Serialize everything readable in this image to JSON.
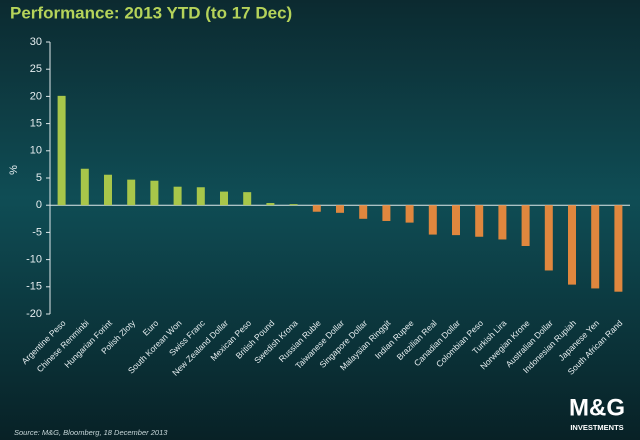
{
  "chart_data": {
    "type": "bar",
    "title": "Performance: 2013 YTD (to 17 Dec)",
    "ylabel": "%",
    "categories": [
      "Argentine Peso",
      "Chinese Renminbi",
      "Hungarian Forint",
      "Polish Zloty",
      "Euro",
      "South Korean Won",
      "Swiss Franc",
      "New Zealand Dollar",
      "Mexican Peso",
      "British Pound",
      "Swedish Krona",
      "Russian Ruble",
      "Taiwanese Dollar",
      "Singapore Dollar",
      "Malaysian Ringgit",
      "Indian Rupee",
      "Brazilian Real",
      "Canadian Dollar",
      "Colombian Peso",
      "Turkish Lira",
      "Norwegian Krone",
      "Australian Dollar",
      "Indonesian Rupiah",
      "Japanese Yen",
      "South African Rand"
    ],
    "values": [
      20.1,
      6.7,
      5.6,
      4.7,
      4.5,
      3.4,
      3.3,
      2.5,
      2.4,
      0.4,
      0.2,
      -1.2,
      -1.4,
      -2.5,
      -2.9,
      -3.2,
      -5.4,
      -5.5,
      -5.8,
      -6.3,
      -7.5,
      -12.0,
      -14.6,
      -15.3,
      -15.9
    ],
    "positive_color": "#a8c64a",
    "negative_color": "#e0873e",
    "ylim": [
      -20,
      30
    ],
    "yticks": [
      -20,
      -15,
      -10,
      -5,
      0,
      5,
      10,
      15,
      20,
      25,
      30
    ]
  },
  "source": "Source: M&G, Bloomberg, 18 December 2013",
  "logo": {
    "name": "M&G",
    "tagline": "INVESTMENTS"
  }
}
